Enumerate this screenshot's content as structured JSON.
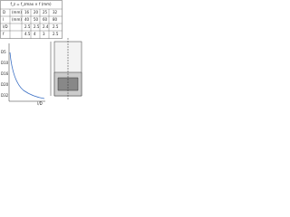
{
  "table": {
    "title": "f_z = f_zmax × f (mm)",
    "rows": [
      [
        "D",
        "(mm)",
        "16",
        "20",
        "25",
        "32"
      ],
      [
        "l",
        "(mm)",
        "40",
        "50",
        "60",
        "80"
      ],
      [
        "l/D",
        "",
        "2.5",
        "2.5",
        "2.4",
        "2.5"
      ],
      [
        "f",
        "",
        "4.5",
        "4",
        "3",
        "2.5"
      ]
    ]
  },
  "figure": {
    "y_labels": [
      "D5",
      "D10",
      "D16",
      "D20",
      "D32"
    ],
    "x_label": "l/D"
  }
}
